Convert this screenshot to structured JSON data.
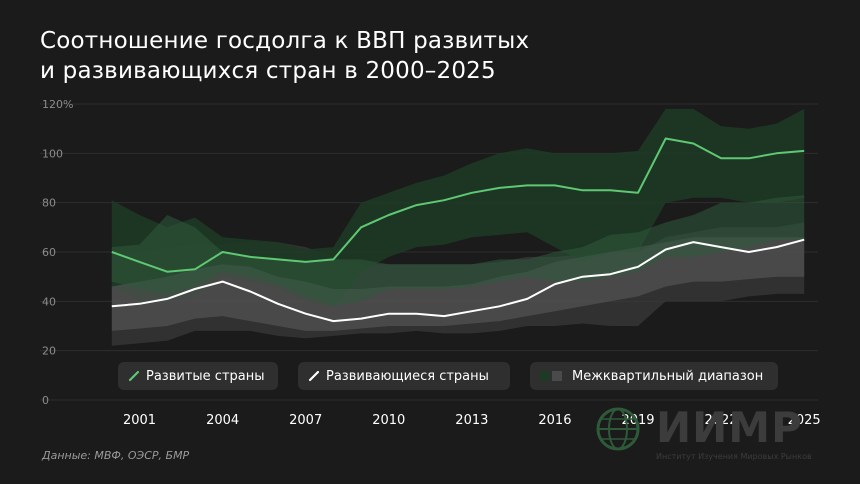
{
  "title": {
    "line1": "Соотношение госдолга к ВВП развитых",
    "line2": "и развивающихся стран в 2000–2025"
  },
  "source": "Данные: МВФ, ОЭСР, БМР",
  "logo": {
    "name": "ИИМР",
    "subtitle": "Институт Изучения Мировых Рынков"
  },
  "legend": {
    "developed": "Развитые страны",
    "emerging": "Развивающиеся страны",
    "iqr": "Межквартильный диапазон"
  },
  "colors": {
    "background": "#1b1b1b",
    "developed_line": "#5ec873",
    "developed_band": "#1e3a26",
    "developed_band_inner": "#2e5a3a",
    "emerging_line": "#ffffff",
    "emerging_band": "#3a3a3a",
    "emerging_band_inner": "#5a5a5a",
    "grid": "#2e2e2e"
  },
  "chart_data": {
    "type": "line",
    "xlabel": "",
    "ylabel": "",
    "ylim": [
      0,
      120
    ],
    "xlim": [
      1999.5,
      2025.5
    ],
    "y_ticks": [
      "0",
      "20",
      "40",
      "60",
      "80",
      "100",
      "120%"
    ],
    "y_tick_values": [
      0,
      20,
      40,
      60,
      80,
      100,
      120
    ],
    "x_ticks": [
      "2001",
      "2004",
      "2007",
      "2010",
      "2013",
      "2016",
      "2019",
      "2022",
      "2025"
    ],
    "x_tick_values": [
      2001,
      2004,
      2007,
      2010,
      2013,
      2016,
      2019,
      2022,
      2025
    ],
    "grid": true,
    "x": [
      2000,
      2001,
      2002,
      2003,
      2004,
      2005,
      2006,
      2007,
      2008,
      2009,
      2010,
      2011,
      2012,
      2013,
      2014,
      2015,
      2016,
      2017,
      2018,
      2019,
      2020,
      2021,
      2022,
      2023,
      2024,
      2025
    ],
    "series": [
      {
        "name": "Развитые страны",
        "values": [
          60,
          56,
          52,
          53,
          60,
          58,
          57,
          56,
          57,
          70,
          75,
          79,
          81,
          84,
          86,
          87,
          87,
          85,
          85,
          84,
          106,
          104,
          98,
          98,
          100,
          101
        ]
      },
      {
        "name": "Развивающиеся страны",
        "values": [
          38,
          39,
          41,
          45,
          48,
          44,
          39,
          35,
          32,
          33,
          35,
          35,
          34,
          36,
          38,
          41,
          47,
          50,
          51,
          54,
          61,
          64,
          62,
          60,
          62,
          65
        ]
      }
    ],
    "bands": [
      {
        "name": "Межквартильный диапазон (развитые страны)",
        "outer_upper": [
          81,
          75,
          70,
          74,
          66,
          65,
          64,
          61,
          62,
          80,
          84,
          88,
          91,
          96,
          100,
          102,
          100,
          100,
          100,
          101,
          118,
          118,
          111,
          110,
          112,
          118
        ],
        "outer_lower": [
          46,
          40,
          40,
          42,
          50,
          48,
          45,
          40,
          38,
          52,
          58,
          62,
          63,
          66,
          67,
          68,
          62,
          56,
          60,
          60,
          80,
          82,
          82,
          80,
          80,
          82
        ],
        "inner_upper": [
          62,
          63,
          75,
          70,
          60,
          58,
          57,
          56,
          57,
          57,
          55,
          55,
          55,
          55,
          57,
          57,
          60,
          62,
          67,
          68,
          72,
          75,
          80,
          80,
          82,
          83
        ],
        "inner_lower": [
          48,
          45,
          43,
          46,
          52,
          50,
          47,
          42,
          38,
          40,
          45,
          45,
          45,
          46,
          48,
          50,
          48,
          48,
          50,
          52,
          58,
          58,
          60,
          62,
          65,
          65
        ]
      },
      {
        "name": "Межквартильный диапазон (развивающиеся страны)",
        "outer_upper": [
          58,
          60,
          62,
          63,
          63,
          64,
          64,
          62,
          58,
          55,
          55,
          55,
          55,
          55,
          56,
          58,
          58,
          59,
          60,
          60,
          66,
          68,
          70,
          70,
          70,
          72
        ],
        "outer_lower": [
          22,
          23,
          24,
          28,
          28,
          28,
          26,
          25,
          26,
          27,
          27,
          28,
          27,
          27,
          28,
          30,
          30,
          31,
          30,
          30,
          40,
          40,
          40,
          42,
          43,
          43
        ],
        "inner_upper": [
          46,
          48,
          50,
          53,
          55,
          54,
          50,
          48,
          45,
          45,
          46,
          46,
          46,
          47,
          50,
          52,
          56,
          58,
          60,
          62,
          64,
          66,
          66,
          66,
          66,
          66
        ],
        "inner_lower": [
          28,
          29,
          30,
          33,
          34,
          32,
          30,
          28,
          28,
          29,
          30,
          30,
          30,
          31,
          32,
          34,
          36,
          38,
          40,
          42,
          46,
          48,
          48,
          49,
          50,
          50
        ]
      }
    ]
  }
}
